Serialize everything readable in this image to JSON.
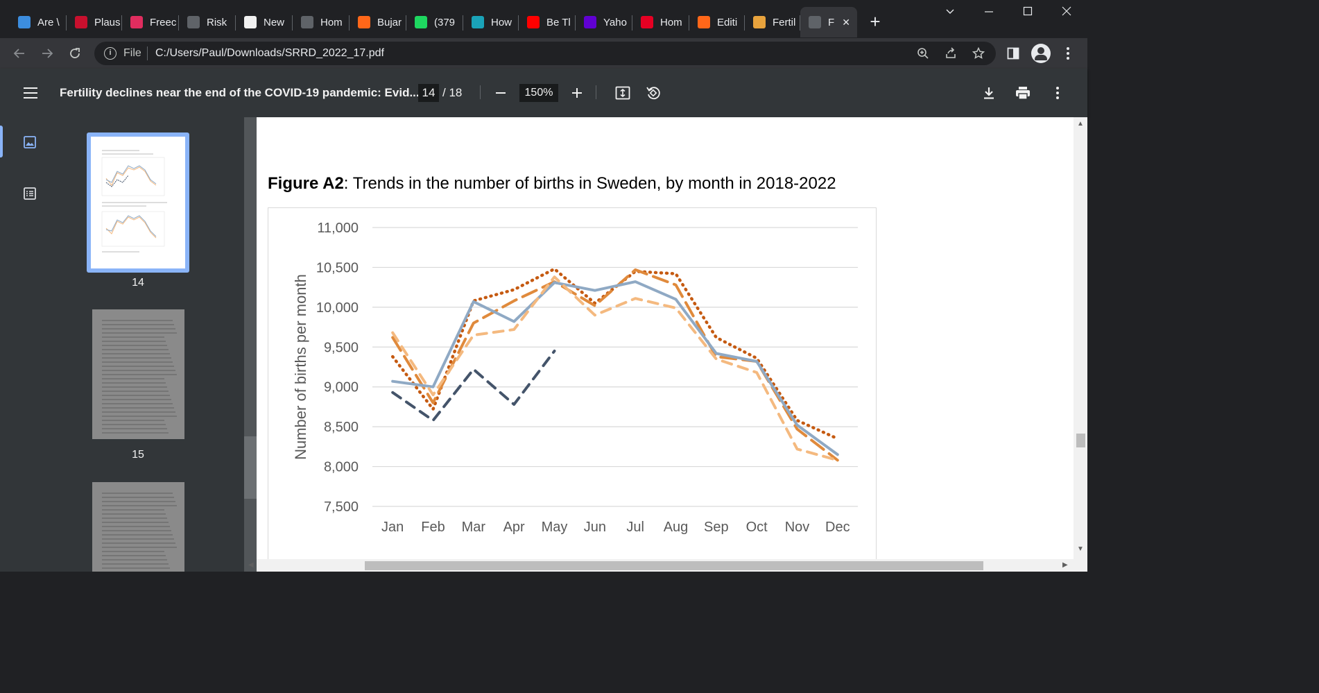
{
  "tabs": [
    {
      "label": "Are \\",
      "icon": "globe-icon",
      "color": "#3c8dde"
    },
    {
      "label": "Plaus",
      "icon": "bi-icon",
      "color": "#c8102e"
    },
    {
      "label": "Freec",
      "icon": "freecodecamp-icon",
      "color": "#e02d5f"
    },
    {
      "label": "Risk",
      "icon": "globe-icon",
      "color": "#5f6368"
    },
    {
      "label": "New",
      "icon": "feather-icon",
      "color": "#f1f1f1"
    },
    {
      "label": "Hom",
      "icon": "globe-icon",
      "color": "#5f6368"
    },
    {
      "label": "Bujar",
      "icon": "substack-icon",
      "color": "#ff6719"
    },
    {
      "label": "(379",
      "icon": "g-icon",
      "color": "#1ed760"
    },
    {
      "label": "How",
      "icon": "stat-icon",
      "color": "#1aa3b8"
    },
    {
      "label": "Be Tl",
      "icon": "youtube-icon",
      "color": "#ff0000"
    },
    {
      "label": "Yaho",
      "icon": "yahoo-icon",
      "color": "#6001d2"
    },
    {
      "label": "Hom",
      "icon": "pin-icon",
      "color": "#e60023"
    },
    {
      "label": "Editi",
      "icon": "substack-icon",
      "color": "#ff6719"
    },
    {
      "label": "Fertil",
      "icon": "spinner-icon",
      "color": "#e8a33d"
    },
    {
      "label": "F",
      "icon": "globe-icon",
      "color": "#5f6368",
      "active": true
    }
  ],
  "toolbar": {
    "file_label": "File",
    "url": "C:/Users/Paul/Downloads/SRRD_2022_17.pdf"
  },
  "pdf": {
    "title": "Fertility declines near the end of the COVID-19 pandemic: Evid...",
    "page_current": "14",
    "page_total": "/ 18",
    "zoom": "150%"
  },
  "thumbnails": [
    {
      "label": "14",
      "selected": true
    },
    {
      "label": "15"
    },
    {
      "label": ""
    }
  ],
  "figure": {
    "title_bold": "Figure A2",
    "title_rest": ": Trends in the number of births in Sweden, by month in 2018-2022"
  },
  "chart_data": {
    "type": "line",
    "title": "",
    "xlabel": "",
    "ylabel": "Number of births per month",
    "ylim": [
      7500,
      11000
    ],
    "yticks": [
      "11,000",
      "10,500",
      "10,000",
      "9,500",
      "9,000",
      "8,500",
      "8,000",
      "7,500"
    ],
    "categories": [
      "Jan",
      "Feb",
      "Mar",
      "Apr",
      "May",
      "Jun",
      "Jul",
      "Aug",
      "Sep",
      "Oct",
      "Nov",
      "Dec"
    ],
    "grid": true,
    "series": [
      {
        "key": "s2018",
        "style": "dotted",
        "color": "#c55a11",
        "values": [
          9380,
          8720,
          10080,
          10220,
          10480,
          10050,
          10450,
          10420,
          9620,
          9360,
          8580,
          8350
        ]
      },
      {
        "key": "s2019",
        "style": "longdash",
        "color": "#e08a3c",
        "values": [
          9620,
          8800,
          9800,
          10080,
          10320,
          10020,
          10470,
          10280,
          9380,
          9320,
          8470,
          8080
        ]
      },
      {
        "key": "s2020",
        "style": "solid",
        "color": "#8fa9c4",
        "values": [
          9070,
          9000,
          10070,
          9820,
          10310,
          10210,
          10320,
          10100,
          9420,
          9320,
          8520,
          8150
        ]
      },
      {
        "key": "s2021",
        "style": "dash",
        "color": "#f4b97f",
        "values": [
          9680,
          8900,
          9650,
          9720,
          10380,
          9900,
          10110,
          9990,
          9350,
          9180,
          8220,
          8080
        ]
      },
      {
        "key": "s2022",
        "style": "dash",
        "color": "#44546a",
        "values": [
          8930,
          8580,
          9220,
          8780,
          9450,
          null,
          null,
          null,
          null,
          null,
          null,
          null
        ]
      }
    ]
  }
}
